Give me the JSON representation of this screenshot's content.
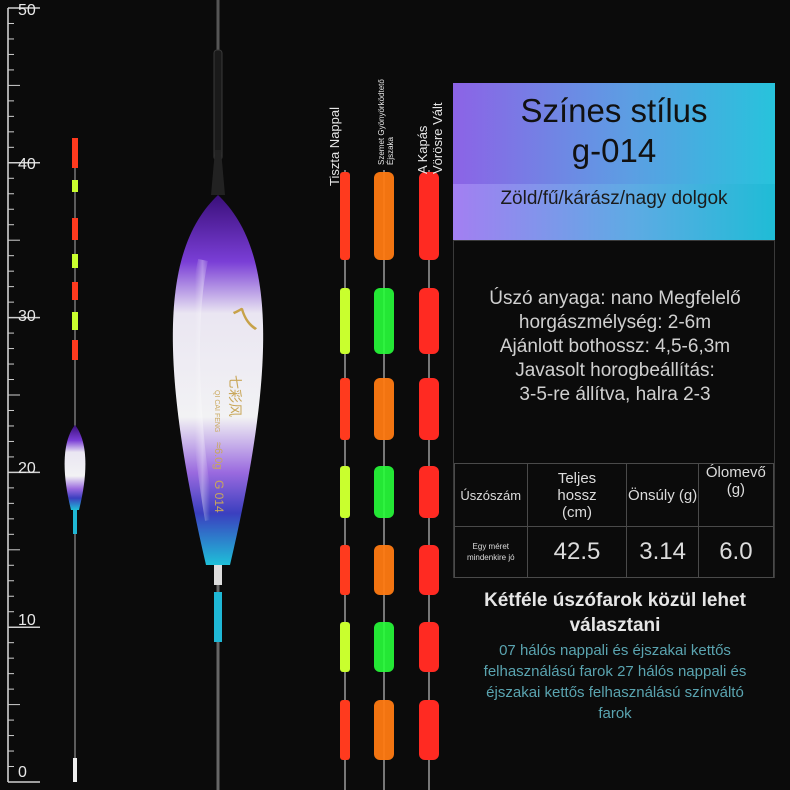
{
  "ruler": {
    "labels": [
      "50",
      "40",
      "30",
      "20",
      "10",
      "0"
    ]
  },
  "tip_labels": {
    "day_clear": "Tiszta Nappal",
    "night_eye": "Szemet Gyönyörködtető Éjszaka",
    "bite_red": "A Kapás Vörösre Vált"
  },
  "product_body": {
    "brand": "七彩风",
    "brand_latin": "QI CAI FENG",
    "weight": "≈6.0g",
    "model": "G 014"
  },
  "title": {
    "line1": "Színes stílus",
    "line2": "g-014"
  },
  "subtitle": "Zöld/fű/kárász/nagy dolgok",
  "specs": [
    "Úszó anyaga: nano Megfelelő",
    "horgászmélység: 2-6m",
    "Ajánlott bothossz: 4,5-6,3m",
    "Javasolt horogbeállítás:",
    "3-5-re állítva, halra 2-3"
  ],
  "table": {
    "headers": [
      "Úszószám",
      "Teljes hossz (cm)",
      "Önsúly (g)",
      "Ólomevő (g)"
    ],
    "row": [
      "Egy méret mindenkire jó",
      "42.5",
      "3.14",
      "6.0"
    ]
  },
  "bottom": {
    "title": "Kétféle úszófarok közül lehet választani",
    "desc": "07 hálós nappali és éjszakai kettős felhasználású farok 27 hálós nappali és éjszakai kettős felhasználású színváltó farok"
  },
  "colors": {
    "tip_red": "#ff3a1e",
    "tip_orange": "#ff7a12",
    "tip_green": "#27ff3a",
    "tip_yellow": "#c9ff2e",
    "body_purple": "#6a1fbf",
    "body_cyan": "#1fb8d6"
  }
}
